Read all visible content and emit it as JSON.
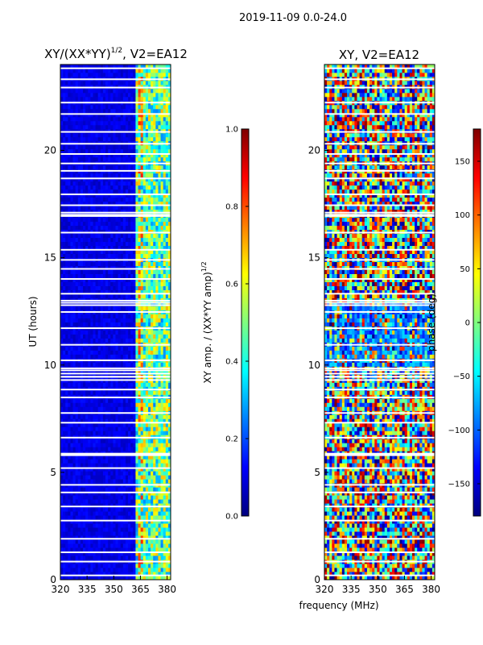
{
  "figure_title": "2019-11-09 0.0-24.0",
  "shared_xlabel": "frequency (MHz)",
  "chart_data": [
    {
      "type": "heatmap",
      "title": "XY/(XX*YY)",
      "title_exp": "1/2",
      "title_rest": ", V2=EA12",
      "xlabel": "",
      "ylabel": "UT (hours)",
      "xlim": [
        320,
        382
      ],
      "ylim": [
        0,
        24
      ],
      "xticks": [
        320,
        335,
        350,
        365,
        380
      ],
      "yticks": [
        0,
        5,
        10,
        15,
        20
      ],
      "colorbar": {
        "label_text": "XY amp. / (XX*YY amp)",
        "label_exp": "1/2",
        "ticks": [
          "0.0",
          "0.2",
          "0.4",
          "0.6",
          "0.8",
          "1.0"
        ],
        "range": [
          0.0,
          1.0
        ],
        "colormap": "jet"
      },
      "description": "Normalized cross-correlation amplitude vs frequency and time; mostly low (~0.05-0.15) with bright channels near 362-382 MHz"
    },
    {
      "type": "heatmap",
      "title": "XY, V2=EA12",
      "xlabel": "",
      "ylabel": "",
      "xlim": [
        320,
        382
      ],
      "ylim": [
        0,
        24
      ],
      "xticks": [
        320,
        335,
        350,
        365,
        380
      ],
      "yticks": [
        0,
        5,
        10,
        15,
        20
      ],
      "colorbar": {
        "label_text": "phase (deg)",
        "ticks": [
          "−150",
          "−100",
          "−50",
          "0",
          "50",
          "100",
          "150"
        ],
        "range": [
          -180,
          180
        ],
        "colormap": "jet"
      },
      "description": "Cross-correlation phase vs frequency and time; noisy phases spanning full range"
    }
  ],
  "colors": {
    "jet_low": "#00007f",
    "jet_high": "#7f0000",
    "gap": "#ffffff"
  }
}
